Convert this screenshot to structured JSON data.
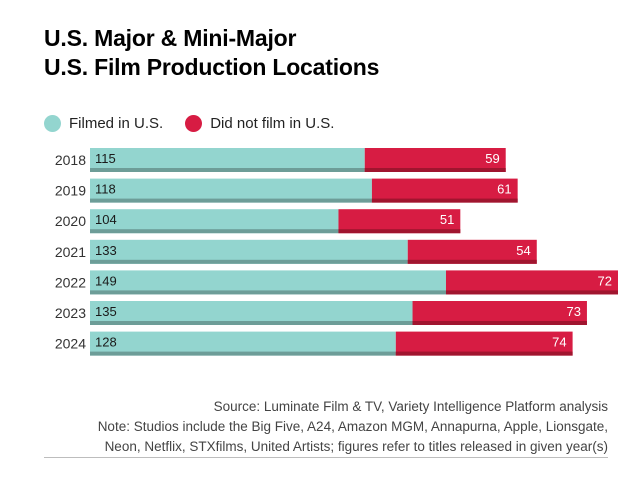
{
  "title_lines": [
    "U.S. Major & Mini-Major",
    "U.S. Film Production Locations"
  ],
  "legend": [
    {
      "label": "Filmed in U.S.",
      "color": "#93d5cf"
    },
    {
      "label": "Did not film in U.S.",
      "color": "#d71c43"
    }
  ],
  "notes": {
    "source": "Source: Luminate Film & TV, Variety Intelligence Platform analysis",
    "line1": "Note: Studios include the Big Five, A24, Amazon MGM, Annapurna, Apple, Lionsgate,",
    "line2": "Neon, Netflix, STXfilms, United Artists; figures refer to titles released in given year(s)"
  },
  "chart_data": {
    "type": "bar",
    "orientation": "horizontal",
    "stacked": true,
    "categories": [
      "2018",
      "2019",
      "2020",
      "2021",
      "2022",
      "2023",
      "2024"
    ],
    "series": [
      {
        "name": "Filmed in U.S.",
        "values": [
          115,
          118,
          104,
          133,
          149,
          135,
          128
        ],
        "color": "#93d5cf"
      },
      {
        "name": "Did not film in U.S.",
        "values": [
          59,
          61,
          51,
          54,
          72,
          73,
          74
        ],
        "color": "#d71c43"
      }
    ],
    "title": "U.S. Major & Mini-Major U.S. Film Production Locations",
    "xlim": [
      0,
      221
    ],
    "grid": false,
    "legend_position": "top-left"
  }
}
